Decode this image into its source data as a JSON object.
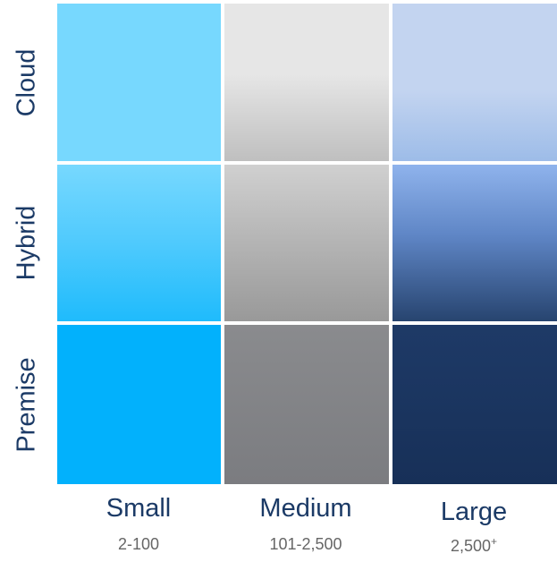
{
  "rows": [
    {
      "label": "Cloud"
    },
    {
      "label": "Hybrid"
    },
    {
      "label": "Premise"
    }
  ],
  "columns": [
    {
      "label": "Small",
      "range": "2-100",
      "range_sup": ""
    },
    {
      "label": "Medium",
      "range": "101-2,500",
      "range_sup": ""
    },
    {
      "label": "Large",
      "range": "2,500",
      "range_sup": "+"
    }
  ],
  "colors": {
    "small_cloud": "#77d8fe",
    "small_hybrid_top": "#77d8fe",
    "small_hybrid_bottom": "#1fbbfc",
    "small_premise": "#02b1fc",
    "medium_cloud_top": "#e6e6e6",
    "medium_cloud_bottom": "#bfbfbf",
    "medium_hybrid_top": "#d0d0d0",
    "medium_hybrid_bottom": "#999999",
    "medium_premise_top": "#8a8b8e",
    "medium_premise_bottom": "#7b7c80",
    "large_cloud_top": "#c3d4f0",
    "large_cloud_bottom": "#9dbce8",
    "large_hybrid_top": "#8fb3ec",
    "large_hybrid_bottom": "#27446f",
    "large_premise_top": "#1e3a67",
    "large_premise_bottom": "#173058",
    "label": "#1b3a66",
    "sublabel": "#666666"
  }
}
